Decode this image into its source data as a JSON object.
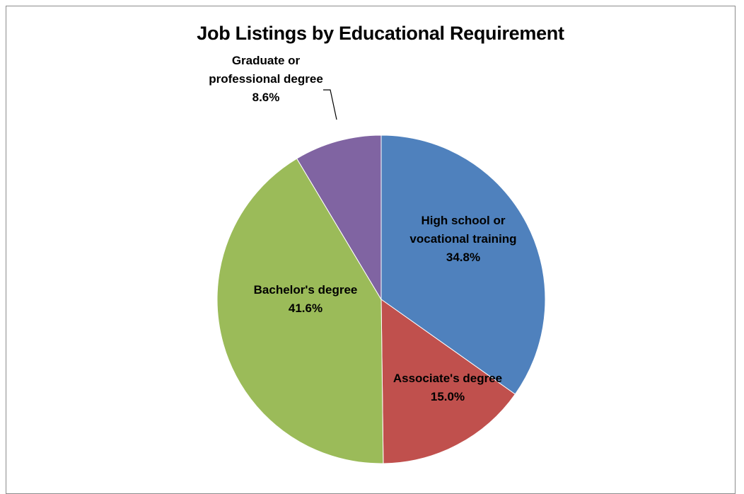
{
  "chart_data": {
    "type": "pie",
    "title": "Job Listings by Educational Requirement",
    "start_angle_deg": 0,
    "direction": "clockwise",
    "slices": [
      {
        "label_lines": [
          "High school or",
          "vocational training"
        ],
        "value": 34.8,
        "value_label": "34.8%",
        "color": "#4f81bd"
      },
      {
        "label_lines": [
          "Associate's degree"
        ],
        "value": 15.0,
        "value_label": "15.0%",
        "color": "#c0504d"
      },
      {
        "label_lines": [
          "Bachelor's degree"
        ],
        "value": 41.6,
        "value_label": "41.6%",
        "color": "#9bbb59"
      },
      {
        "label_lines": [
          "Graduate or",
          "professional degree"
        ],
        "value": 8.6,
        "value_label": "8.6%",
        "color": "#8064a2"
      }
    ]
  }
}
